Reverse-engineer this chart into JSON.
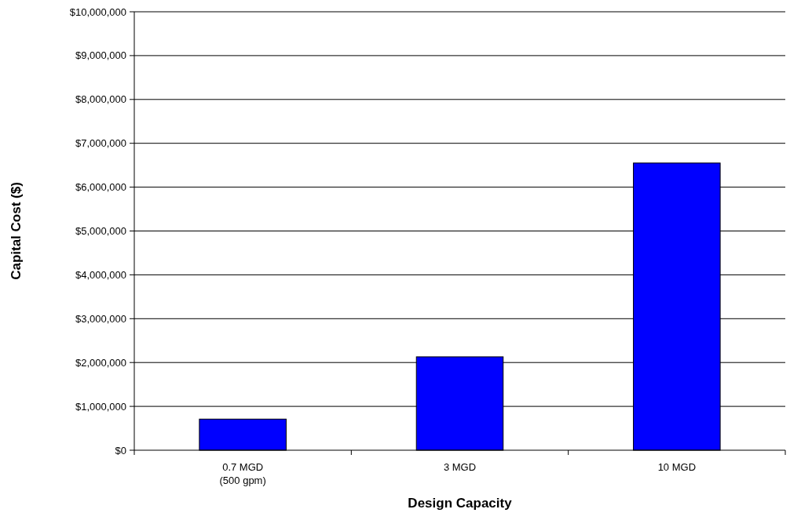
{
  "chart_data": {
    "type": "bar",
    "xlabel": "Design Capacity",
    "ylabel": "Capital Cost ($)",
    "categories": [
      "0.7 MGD\n(500 gpm)",
      "3 MGD",
      "10 MGD"
    ],
    "values": [
      710000,
      2130000,
      6550000
    ],
    "color": "#0000ff",
    "ylim": [
      0,
      10000000
    ],
    "yticks": [
      {
        "value": 0,
        "label": "$0"
      },
      {
        "value": 1000000,
        "label": "$1,000,000"
      },
      {
        "value": 2000000,
        "label": "$2,000,000"
      },
      {
        "value": 3000000,
        "label": "$3,000,000"
      },
      {
        "value": 4000000,
        "label": "$4,000,000"
      },
      {
        "value": 5000000,
        "label": "$5,000,000"
      },
      {
        "value": 6000000,
        "label": "$6,000,000"
      },
      {
        "value": 7000000,
        "label": "$7,000,000"
      },
      {
        "value": 8000000,
        "label": "$8,000,000"
      },
      {
        "value": 9000000,
        "label": "$9,000,000"
      },
      {
        "value": 10000000,
        "label": "$10,000,000"
      }
    ],
    "grid": "y"
  }
}
